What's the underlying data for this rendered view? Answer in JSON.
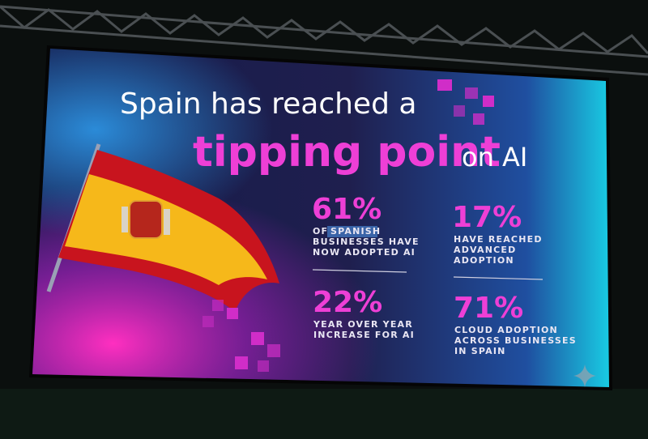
{
  "slide": {
    "title": {
      "line1": "Spain has reached a",
      "emphasis": "tipping point",
      "suffix": "on AI"
    },
    "stats": [
      {
        "figure": "61%",
        "prefix": "OF",
        "highlight": "SPANISH",
        "lines": [
          "BUSINESSES HAVE",
          "NOW ADOPTED AI"
        ]
      },
      {
        "figure": "17%",
        "lines": [
          "HAVE REACHED",
          "ADVANCED",
          "ADOPTION"
        ]
      },
      {
        "figure": "22%",
        "lines": [
          "YEAR OVER YEAR",
          "INCREASE FOR AI"
        ]
      },
      {
        "figure": "71%",
        "lines": [
          "CLOUD ADOPTION",
          "ACROSS BUSINESSES",
          "IN SPAIN"
        ]
      }
    ]
  }
}
